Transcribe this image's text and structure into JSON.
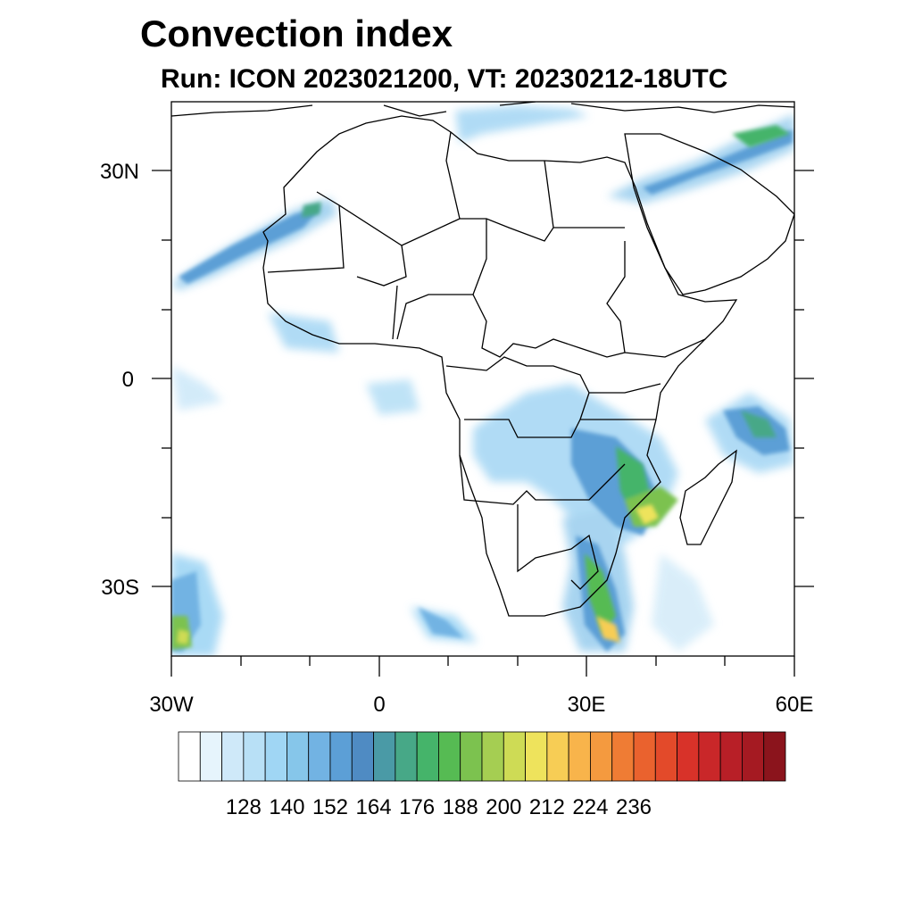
{
  "title": "Convection index",
  "subtitle": "Run: ICON 2023021200,  VT: 20230212-18UTC",
  "lat_ticks": [
    "30N",
    "0",
    "30S"
  ],
  "lon_ticks": [
    "30W",
    "0",
    "30E",
    "60E"
  ],
  "colorbar": {
    "labels": [
      "128",
      "140",
      "152",
      "164",
      "176",
      "188",
      "200",
      "212",
      "224",
      "236"
    ],
    "colors": [
      "#ffffff",
      "#e6f4fc",
      "#cfe9f9",
      "#b8e0f6",
      "#a0d6f4",
      "#86c6ea",
      "#72b3e3",
      "#5c9fd6",
      "#4f8bc3",
      "#4a9aa6",
      "#47a887",
      "#45b46a",
      "#56bb53",
      "#7cc24f",
      "#a5ce52",
      "#cedb55",
      "#eee35c",
      "#f7cd55",
      "#f8b44b",
      "#f49a3f",
      "#ef7c34",
      "#ea622e",
      "#e34a2a",
      "#d83229",
      "#c92729",
      "#b81f27",
      "#a51a22",
      "#8b141c"
    ]
  },
  "colors": {
    "coast": "#000000",
    "land": "#ffffff"
  },
  "cloud_layer": "convection-index-field"
}
